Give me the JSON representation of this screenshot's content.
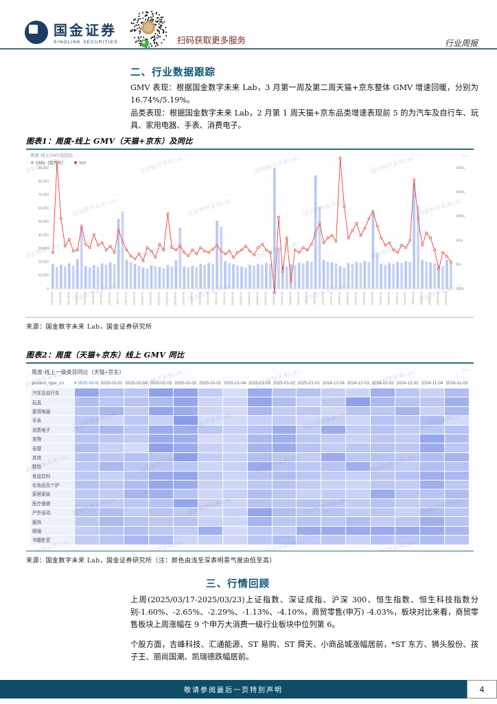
{
  "header": {
    "brand_cn": "国金证券",
    "brand_en": "SINOLINK SECURITIES",
    "qr_caption": "扫码获取更多服务",
    "report_type": "行业周报"
  },
  "watermark_text": "国金数字未来Lab…",
  "section2": {
    "title": "二、行业数据跟踪",
    "para1": "GMV 表现：根据国金数字未来 Lab，3 月第一周及第二周天猫+京东整体 GMV 增速回暖，分别为 16.74%/5.19%。",
    "para2": "品类表现：根据国金数字未来 Lab，2 月第 1 周天猫+京东品类增速表现前 5 的为汽车及自行车、玩具、家用电器、手表、消费电子。"
  },
  "figure1": {
    "caption": "图表1：周度-线上 GMV（天猫+京东）及同比",
    "source": "来源：国金数字未来 Lab，国金证券研究所",
    "more_label": "…"
  },
  "figure2": {
    "caption": "图表2：周度（天猫+京东）线上 GMV 同比",
    "source": "来源：国金数字未来 Lab，国金证券研究所（注：颜色由浅至深表明景气度由低至高）",
    "more_label": "…"
  },
  "section3": {
    "title": "三、行情回顾",
    "para1": "上周(2025/03/17-2025/03/23)上证指数、深证成指、沪深 300、恒生指数、恒生科技指数分别-1.60%、-2.65%、-2.29%、-1.13%、-4.10%，商贸零售(申万) -4.03%，板块对比来看，商贸零售板块上周涨幅在 9 个申万大消费一级行业板块中位列第 6。",
    "para2": "个股方面，吉峰科技、汇通能源、ST 易购、ST 舜天、小商品城涨幅居前，*ST 东方、狮头股份、孩子王、丽尚国潮、凯瑞德跌幅居前。"
  },
  "footer": {
    "disclaimer": "敬请参阅最后一页特别声明",
    "page_number": "4"
  },
  "chart_data": [
    {
      "type": "bar",
      "subtype": "bar+line-dual-axis",
      "title": "周度-线上GMV及同比",
      "legend": [
        {
          "label": "GMV（百万元）",
          "color": "#9eb4ec"
        },
        {
          "label": "YoY",
          "color": "#e2423a"
        }
      ],
      "bar_color": "#b9c8f1",
      "line_color": "#e2423a",
      "ylabel_left": "GMV（百万元）",
      "ylabel_right": "YoY",
      "ylim_left": [
        0,
        90000
      ],
      "ytick_step_left": 10000,
      "ylim_right": [
        -50,
        200
      ],
      "ytick_step_right": 50,
      "grid": true,
      "legend_position": "top-left",
      "x": [
        "2021-03-01",
        "2021-03-03",
        "2021-04-01",
        "2021-04-03",
        "2021-05-01",
        "2021-05-03",
        "2021-06-01",
        "2021-06-03",
        "2021-07-01",
        "2021-07-03",
        "2021-08-01",
        "2021-08-03",
        "2021-09-01",
        "2021-09-03",
        "2021-10-01",
        "2021-10-03",
        "2021-11-01",
        "2021-11-03",
        "2021-12-01",
        "2021-12-03",
        "2022-01-01",
        "2022-01-03",
        "2022-02-01",
        "2022-02-03",
        "2022-03-01",
        "2022-03-03",
        "2022-04-01",
        "2022-04-03",
        "2022-05-01",
        "2022-05-03",
        "2022-06-01",
        "2022-06-03",
        "2022-07-01",
        "2022-07-03",
        "2022-08-01",
        "2022-08-03",
        "2022-09-01",
        "2022-09-03",
        "2022-10-01",
        "2022-10-03",
        "2022-11-01",
        "2022-11-03",
        "2022-12-01",
        "2022-12-03",
        "2023-01-01",
        "2023-01-03",
        "2023-02-01",
        "2023-02-03",
        "2023-03-01",
        "2023-03-03",
        "2023-04-01",
        "2023-04-03",
        "2023-05-01",
        "2023-05-03",
        "2023-06-01",
        "2023-06-03",
        "2023-07-01",
        "2023-07-03",
        "2023-08-01",
        "2023-08-03",
        "2023-09-01",
        "2023-09-03",
        "2023-10-01",
        "2023-10-03",
        "2023-11-01",
        "2023-11-03",
        "2023-12-01",
        "2023-12-03",
        "2024-01-01",
        "2024-01-03",
        "2024-02-01",
        "2024-02-03",
        "2024-03-01",
        "2024-03-03",
        "2024-04-01",
        "2024-04-03",
        "2024-05-01",
        "2024-05-03",
        "2024-06-01",
        "2024-06-03",
        "2024-07-01",
        "2024-07-03",
        "2024-08-01",
        "2024-08-03",
        "2024-09-01",
        "2024-09-03",
        "2024-10-01",
        "2024-10-03",
        "2024-11-01",
        "2024-11-03",
        "2024-12-01",
        "2024-12-03",
        "2025-01-01",
        "2025-01-03",
        "2025-02-01",
        "2025-02-03",
        "2025-03-01",
        "2025-03-03"
      ],
      "series": [
        {
          "name": "GMV（百万元）",
          "axis": "left",
          "values": [
            18500,
            16200,
            17800,
            16500,
            18900,
            17200,
            22000,
            48000,
            16800,
            15900,
            17500,
            16200,
            18900,
            17800,
            19500,
            18200,
            52000,
            57500,
            21500,
            19800,
            18500,
            17200,
            15800,
            14900,
            17500,
            16800,
            16200,
            15500,
            17800,
            16500,
            21000,
            45500,
            16500,
            15800,
            17200,
            16400,
            18500,
            17600,
            19200,
            18400,
            50500,
            46000,
            20500,
            19200,
            18200,
            17500,
            16500,
            15800,
            17800,
            17200,
            18500,
            17800,
            19200,
            18500,
            90000,
            30500,
            17500,
            16800,
            18200,
            17500,
            19500,
            18800,
            20500,
            19800,
            84500,
            61000,
            21500,
            20200,
            19500,
            18800,
            16800,
            15900,
            19200,
            18500,
            19800,
            19200,
            20500,
            19800,
            57500,
            26500,
            18500,
            17800,
            19200,
            18500,
            19800,
            19200,
            20500,
            19800,
            78500,
            62000,
            21500,
            20200,
            19500,
            18800,
            17500,
            16800,
            21500,
            20500
          ]
        },
        {
          "name": "YoY",
          "axis": "right",
          "values": [
            25,
            212,
            95,
            38,
            52,
            28,
            30,
            78,
            42,
            35,
            62,
            40,
            45,
            30,
            38,
            25,
            72,
            48,
            30,
            18,
            12,
            22,
            8,
            35,
            28,
            15,
            42,
            30,
            105,
            35,
            30,
            38,
            25,
            18,
            30,
            22,
            35,
            28,
            25,
            32,
            40,
            28,
            22,
            28,
            15,
            25,
            30,
            38,
            28,
            20,
            35,
            42,
            30,
            25,
            -58,
            98,
            -15,
            55,
            -35,
            30,
            25,
            35,
            30,
            42,
            65,
            85,
            45,
            55,
            60,
            48,
            220,
            120,
            55,
            70,
            85,
            60,
            75,
            95,
            110,
            80,
            55,
            40,
            45,
            30,
            25,
            40,
            35,
            50,
            175,
            95,
            40,
            65,
            55,
            30,
            -10,
            25,
            16.74,
            5.19
          ]
        }
      ]
    },
    {
      "type": "heatmap",
      "title": "周度-线上一级类目同比（天猫+京东）",
      "corner_label": "product_type_cn",
      "sort_column": "2025-03-02",
      "sort_indicator": "▾",
      "color_low": "#f0f2fd",
      "color_high": "#7e93e8",
      "columns": [
        "2025-03-02",
        "2025-03-01",
        "2025-02-04",
        "2025-02-03",
        "2025-02-02",
        "2025-02-01",
        "2025-01-04",
        "2025-01-03",
        "2025-01-02",
        "2025-01-01",
        "2024-12-04",
        "2024-12-03",
        "2024-12-02",
        "2024-12-01",
        "2024-11-04",
        "2024-11-03"
      ],
      "rows": [
        "汽车及自行车",
        "玩具",
        "家用电器",
        "手表",
        "消费电子",
        "宠物",
        "母婴",
        "其他",
        "鞋包",
        "食品饮料",
        "化妆品及个护",
        "家居家装",
        "医疗保健",
        "户外运动",
        "服饰",
        "眼镜",
        "书籍影音"
      ],
      "values": [
        [
          0.78,
          0.52,
          0.45,
          0.85,
          0.82,
          0.4,
          0.22,
          0.75,
          0.48,
          0.5,
          0.38,
          0.32,
          0.7,
          0.45,
          0.35,
          0.55
        ],
        [
          0.55,
          0.45,
          0.5,
          0.58,
          0.8,
          0.3,
          0.3,
          0.8,
          0.55,
          0.35,
          0.42,
          0.85,
          0.6,
          0.5,
          0.45,
          0.7
        ],
        [
          0.5,
          0.65,
          0.4,
          0.8,
          0.75,
          0.3,
          0.25,
          0.6,
          0.4,
          0.45,
          0.3,
          0.5,
          0.45,
          0.65,
          0.35,
          0.6
        ],
        [
          0.45,
          0.3,
          0.45,
          0.35,
          0.9,
          0.2,
          0.25,
          0.35,
          0.4,
          0.3,
          0.35,
          0.3,
          0.5,
          0.45,
          0.55,
          0.25
        ],
        [
          0.52,
          0.6,
          0.45,
          0.75,
          0.7,
          0.45,
          0.35,
          0.5,
          0.75,
          0.4,
          0.75,
          0.4,
          0.5,
          0.4,
          0.45,
          0.5
        ],
        [
          0.5,
          0.45,
          0.4,
          0.75,
          0.7,
          0.25,
          0.3,
          0.6,
          0.7,
          0.45,
          0.4,
          0.35,
          0.45,
          0.4,
          0.8,
          0.55
        ],
        [
          0.55,
          0.35,
          0.25,
          0.85,
          0.75,
          0.35,
          0.3,
          0.65,
          0.75,
          0.5,
          0.4,
          0.45,
          0.5,
          0.45,
          0.75,
          0.45
        ],
        [
          0.5,
          0.45,
          0.5,
          0.5,
          0.85,
          0.4,
          0.35,
          0.55,
          0.45,
          0.4,
          0.75,
          0.45,
          0.5,
          0.45,
          0.55,
          0.65
        ],
        [
          0.45,
          0.6,
          0.45,
          0.45,
          0.45,
          0.3,
          0.35,
          0.75,
          0.5,
          0.45,
          0.5,
          0.7,
          0.45,
          0.4,
          0.55,
          0.5
        ],
        [
          0.45,
          0.35,
          0.5,
          0.75,
          0.8,
          0.4,
          0.3,
          0.5,
          0.55,
          0.45,
          0.4,
          0.35,
          0.45,
          0.5,
          0.7,
          0.6
        ],
        [
          0.5,
          0.45,
          0.55,
          0.8,
          0.75,
          0.35,
          0.3,
          0.45,
          0.5,
          0.4,
          0.35,
          0.3,
          0.45,
          0.4,
          0.7,
          0.45
        ],
        [
          0.45,
          0.4,
          0.65,
          0.7,
          0.5,
          0.3,
          0.35,
          0.55,
          0.45,
          0.35,
          0.4,
          0.35,
          0.75,
          0.45,
          0.5,
          0.55
        ],
        [
          0.45,
          0.4,
          0.45,
          0.5,
          0.8,
          0.35,
          0.3,
          0.5,
          0.45,
          0.5,
          0.45,
          0.4,
          0.5,
          0.4,
          0.45,
          0.5
        ],
        [
          0.5,
          0.55,
          0.4,
          0.5,
          0.45,
          0.3,
          0.35,
          0.8,
          0.55,
          0.45,
          0.5,
          0.4,
          0.45,
          0.35,
          0.55,
          0.45
        ],
        [
          0.45,
          0.6,
          0.5,
          0.45,
          0.5,
          0.35,
          0.3,
          0.65,
          0.45,
          0.5,
          0.45,
          0.55,
          0.4,
          0.45,
          0.7,
          0.5
        ],
        [
          0.4,
          0.5,
          0.55,
          0.45,
          0.4,
          0.7,
          0.25,
          0.45,
          0.4,
          0.75,
          0.75,
          0.75,
          0.75,
          0.75,
          0.75,
          0.6
        ],
        [
          0.4,
          0.45,
          0.6,
          0.55,
          0.3,
          0.35,
          0.3,
          0.45,
          0.55,
          0.4,
          0.45,
          0.35,
          0.5,
          0.45,
          0.55,
          0.45
        ]
      ]
    }
  ]
}
